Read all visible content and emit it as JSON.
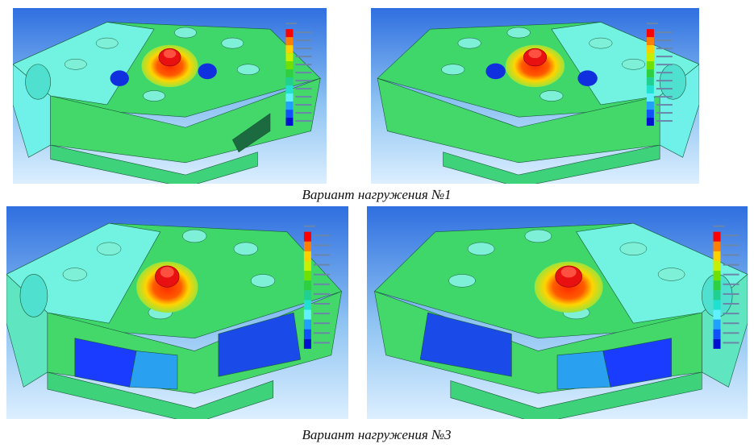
{
  "captions": [
    "Вариант нагружения №1",
    "Вариант нагружения №3"
  ]
}
